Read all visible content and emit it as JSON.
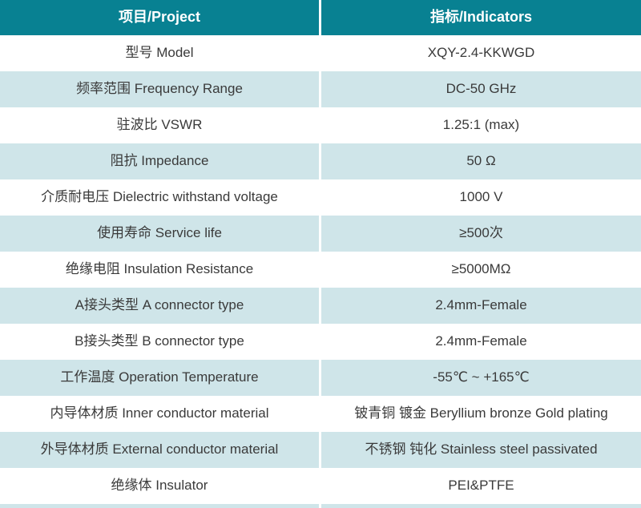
{
  "colors": {
    "header_bg": "#088192",
    "alt_row_bg": "#cfe5e9",
    "row_bg": "#ffffff",
    "divider": "#ffffff",
    "body_text": "#3a3a3a",
    "header_text": "#ffffff"
  },
  "table": {
    "header": {
      "project": "项目/Project",
      "indicators": "指标/Indicators"
    },
    "rows": [
      {
        "project": "型号 Model",
        "indicator": "XQY-2.4-KKWGD"
      },
      {
        "project": "频率范围 Frequency Range",
        "indicator": "DC-50 GHz"
      },
      {
        "project": "驻波比 VSWR",
        "indicator": "1.25:1 (max)"
      },
      {
        "project": "阻抗 Impedance",
        "indicator": "50 Ω"
      },
      {
        "project": "介质耐电压 Dielectric withstand voltage",
        "indicator": "1000 V"
      },
      {
        "project": "使用寿命 Service life",
        "indicator": "≥500次"
      },
      {
        "project": "绝缘电阻 Insulation Resistance",
        "indicator": "≥5000MΩ"
      },
      {
        "project": "A接头类型 A connector type",
        "indicator": "2.4mm-Female"
      },
      {
        "project": "B接头类型 B connector type",
        "indicator": "2.4mm-Female"
      },
      {
        "project": "工作温度 Operation Temperature",
        "indicator": "-55℃ ~ +165℃"
      },
      {
        "project": "内导体材质 Inner conductor material",
        "indicator": "铍青铜 镀金 Beryllium bronze Gold plating"
      },
      {
        "project": "外导体材质 External conductor material",
        "indicator": "不锈钢 钝化 Stainless steel passivated"
      },
      {
        "project": "绝缘体 Insulator",
        "indicator": "PEI&PTFE"
      }
    ]
  }
}
